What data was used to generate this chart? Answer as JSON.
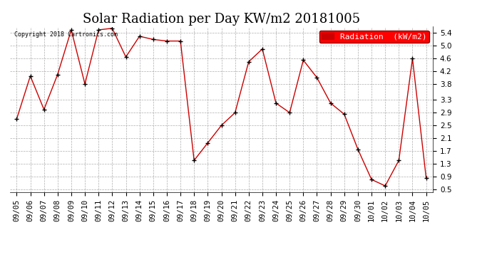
{
  "title": "Solar Radiation per Day KW/m2 20181005",
  "copyright_text": "Copyright 2018 Cartronics.com",
  "legend_label": "Radiation  (kW/m2)",
  "dates": [
    "09/05",
    "09/06",
    "09/07",
    "09/08",
    "09/09",
    "09/10",
    "09/11",
    "09/12",
    "09/13",
    "09/14",
    "09/15",
    "09/16",
    "09/17",
    "09/18",
    "09/19",
    "09/20",
    "09/21",
    "09/22",
    "09/23",
    "09/24",
    "09/25",
    "09/26",
    "09/27",
    "09/28",
    "09/29",
    "09/30",
    "10/01",
    "10/02",
    "10/03",
    "10/04",
    "10/05"
  ],
  "values": [
    2.7,
    4.05,
    3.0,
    4.1,
    5.5,
    3.8,
    5.5,
    5.55,
    4.65,
    5.3,
    5.2,
    5.15,
    5.15,
    1.4,
    1.95,
    2.5,
    2.9,
    4.5,
    4.9,
    3.2,
    2.9,
    4.55,
    4.0,
    3.2,
    2.85,
    1.75,
    0.8,
    0.6,
    1.4,
    4.6,
    0.85
  ],
  "line_color": "#cc0000",
  "marker_color": "#000000",
  "bg_color": "#ffffff",
  "grid_color": "#999999",
  "ylim": [
    0.4,
    5.6
  ],
  "yticks": [
    0.5,
    0.9,
    1.3,
    1.7,
    2.1,
    2.5,
    2.9,
    3.3,
    3.8,
    4.2,
    4.6,
    5.0,
    5.4
  ],
  "title_fontsize": 13,
  "tick_fontsize": 7.5,
  "copyright_fontsize": 6,
  "legend_fontsize": 8
}
